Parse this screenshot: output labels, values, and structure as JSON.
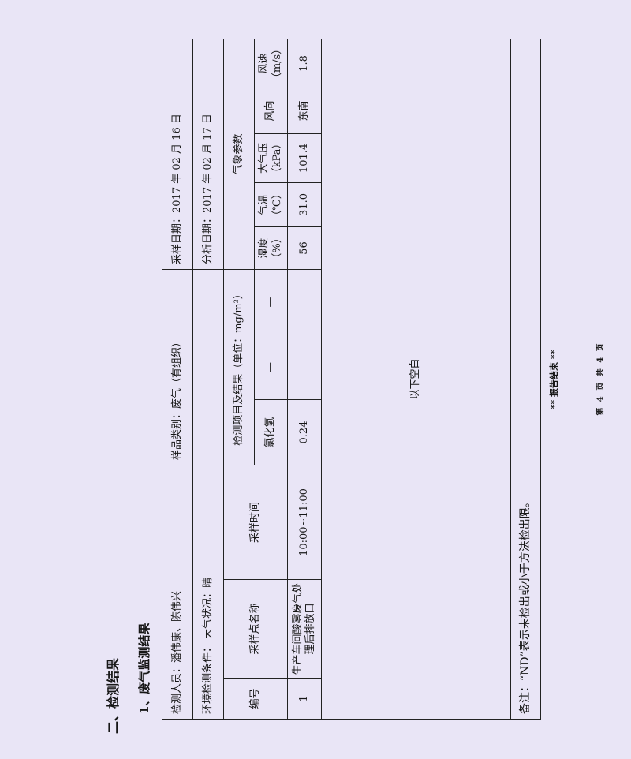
{
  "section_title": "二、检测结果",
  "subsection_title": "1、废气监测结果",
  "info": {
    "inspectors": "检测人员：潘伟康、陈伟兴",
    "sample_type": "样品类别：废气（有组织）",
    "sampling_date": "采样日期：2017 年 02 月 16 日",
    "conditions": "环境检测条件：  天气状况：晴",
    "analysis_date": "分析日期：2017 年 02 月 17 日"
  },
  "headers": {
    "no": "编号",
    "site": "采样点名称",
    "time": "采样时间",
    "items": "检测项目及结果（单位：mg/m³）",
    "weather": "气象参数",
    "item1": "氯化氢",
    "item2": "—",
    "item3": "—",
    "humidity": "湿度（%）",
    "temperature": "气温（℃）",
    "pressure": "大气压（kPa）",
    "wind_dir": "风向",
    "wind_speed": "风速（m/s）"
  },
  "rows": [
    {
      "no": "1",
      "site": "生产车间酸雾废气处理后排放口",
      "time": "10:00~11:00",
      "item1": "0.24",
      "item2": "—",
      "item3": "—",
      "humidity": "56",
      "temperature": "31.0",
      "pressure": "101.4",
      "wind_dir": "东南",
      "wind_speed": "1.8"
    }
  ],
  "blank_note": "以下空白",
  "remark": "备注：“ND”表示未检出或小于方法检出限。",
  "report_end": "** 报告结束 **",
  "page_number": "第 4 页 共 4 页"
}
